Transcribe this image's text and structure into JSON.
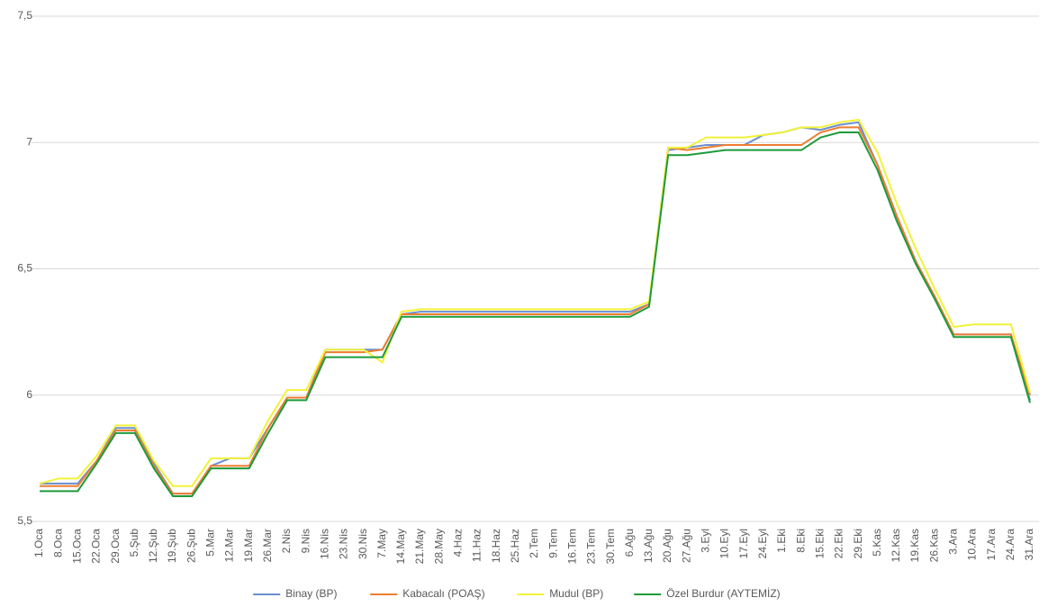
{
  "chart_data": {
    "type": "line",
    "categories": [
      "1.Oca",
      "8.Oca",
      "15.Oca",
      "22.Oca",
      "29.Oca",
      "5.Şub",
      "12.Şub",
      "19.Şub",
      "26.Şub",
      "5.Mar",
      "12.Mar",
      "19.Mar",
      "26.Mar",
      "2.Nis",
      "9.Nis",
      "16.Nis",
      "23.Nis",
      "30.Nis",
      "7.May",
      "14.May",
      "21.May",
      "28.May",
      "4.Haz",
      "11.Haz",
      "18.Haz",
      "25.Haz",
      "2.Tem",
      "9.Tem",
      "16.Tem",
      "23.Tem",
      "30.Tem",
      "6.Ağu",
      "13.Ağu",
      "20.Ağu",
      "27.Ağu",
      "3.Eyl",
      "10.Eyl",
      "17.Eyl",
      "24.Eyl",
      "1.Eki",
      "8.Eki",
      "15.Eki",
      "22.Eki",
      "29.Eki",
      "5.Kas",
      "12.Kas",
      "19.Kas",
      "26.Kas",
      "3.Ara",
      "10.Ara",
      "17.Ara",
      "24.Ara",
      "31.Ara"
    ],
    "series": [
      {
        "name": "Binay (BP)",
        "color": "#6a8fcf",
        "values": [
          5.65,
          5.65,
          5.65,
          5.74,
          5.87,
          5.87,
          5.73,
          5.61,
          5.61,
          5.72,
          5.75,
          5.75,
          5.87,
          5.99,
          5.99,
          6.18,
          6.18,
          6.18,
          6.18,
          6.32,
          6.33,
          6.33,
          6.33,
          6.33,
          6.33,
          6.33,
          6.33,
          6.33,
          6.33,
          6.33,
          6.33,
          6.33,
          6.36,
          6.97,
          6.98,
          6.99,
          6.99,
          6.99,
          7.03,
          7.04,
          7.06,
          7.05,
          7.07,
          7.08,
          6.91,
          6.71,
          6.53,
          6.39,
          6.24,
          6.24,
          6.24,
          6.24,
          5.98
        ]
      },
      {
        "name": "Kabacalı (POAŞ)",
        "color": "#ed7d31",
        "values": [
          5.64,
          5.64,
          5.64,
          5.74,
          5.86,
          5.86,
          5.72,
          5.61,
          5.61,
          5.72,
          5.72,
          5.72,
          5.87,
          5.99,
          5.99,
          6.17,
          6.17,
          6.17,
          6.18,
          6.32,
          6.32,
          6.32,
          6.32,
          6.32,
          6.32,
          6.32,
          6.32,
          6.32,
          6.32,
          6.32,
          6.32,
          6.32,
          6.36,
          6.98,
          6.97,
          6.98,
          6.99,
          6.99,
          6.99,
          6.99,
          6.99,
          7.04,
          7.06,
          7.06,
          6.91,
          6.71,
          6.53,
          6.39,
          6.24,
          6.24,
          6.24,
          6.24,
          6.0
        ]
      },
      {
        "name": "Mudul (BP)",
        "color": "#f2f23a",
        "values": [
          5.65,
          5.67,
          5.67,
          5.76,
          5.88,
          5.88,
          5.74,
          5.64,
          5.64,
          5.75,
          5.75,
          5.75,
          5.9,
          6.02,
          6.02,
          6.18,
          6.18,
          6.18,
          6.13,
          6.33,
          6.34,
          6.34,
          6.34,
          6.34,
          6.34,
          6.34,
          6.34,
          6.34,
          6.34,
          6.34,
          6.34,
          6.34,
          6.37,
          6.98,
          6.98,
          7.02,
          7.02,
          7.02,
          7.03,
          7.04,
          7.06,
          7.06,
          7.08,
          7.09,
          6.96,
          6.76,
          6.58,
          6.42,
          6.27,
          6.28,
          6.28,
          6.28,
          6.01
        ]
      },
      {
        "name": "Özel Burdur (AYTEMİZ)",
        "color": "#1e9a3c",
        "values": [
          5.62,
          5.62,
          5.62,
          5.73,
          5.85,
          5.85,
          5.71,
          5.6,
          5.6,
          5.71,
          5.71,
          5.71,
          5.85,
          5.98,
          5.98,
          6.15,
          6.15,
          6.15,
          6.15,
          6.31,
          6.31,
          6.31,
          6.31,
          6.31,
          6.31,
          6.31,
          6.31,
          6.31,
          6.31,
          6.31,
          6.31,
          6.31,
          6.35,
          6.95,
          6.95,
          6.96,
          6.97,
          6.97,
          6.97,
          6.97,
          6.97,
          7.02,
          7.04,
          7.04,
          6.89,
          6.69,
          6.52,
          6.38,
          6.23,
          6.23,
          6.23,
          6.23,
          5.97
        ]
      }
    ],
    "ylim": [
      5.5,
      7.5
    ],
    "yticks": [
      {
        "value": 5.5,
        "label": "5,5"
      },
      6,
      {
        "value": 6.5,
        "label": "6,5"
      },
      7,
      {
        "value": 7.5,
        "label": "7,5"
      }
    ],
    "grid": true
  }
}
